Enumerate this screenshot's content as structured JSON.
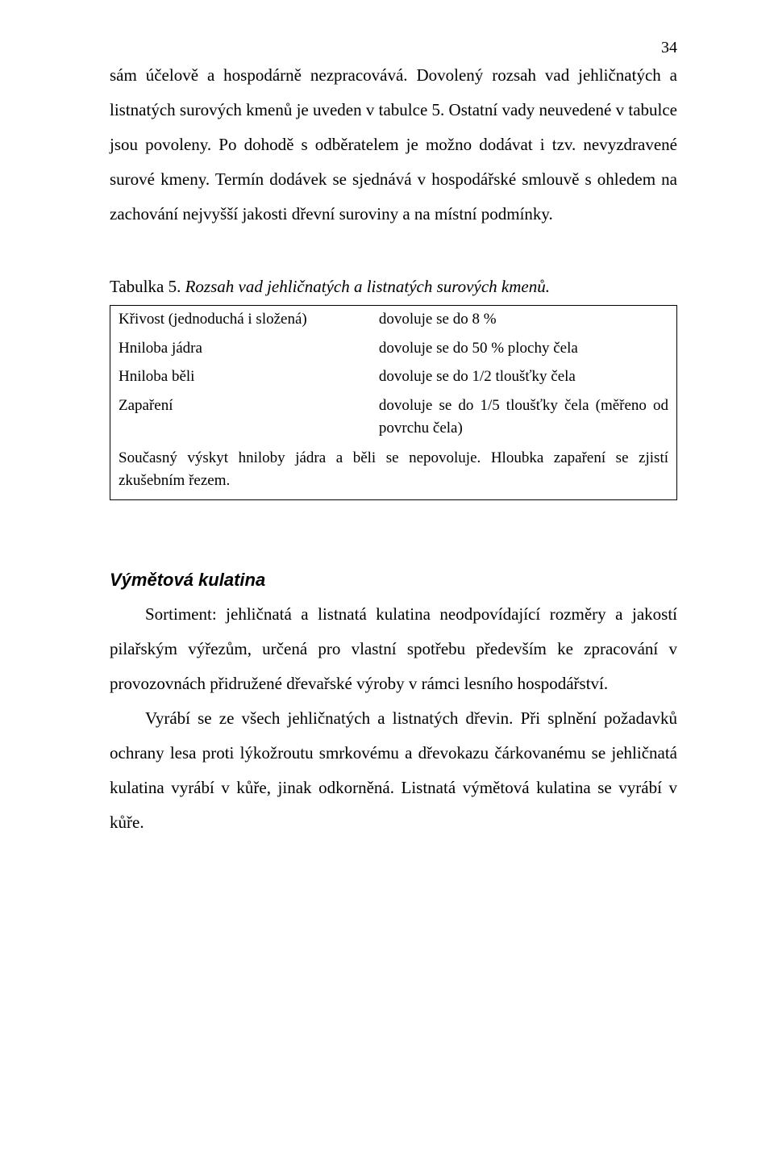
{
  "page_number": "34",
  "para1": "sám účelově a hospodárně nezpracovává. Dovolený rozsah vad jehličnatých a listnatých surových kmenů je uveden v tabulce 5. Ostatní vady neuvedené v tabulce jsou povoleny. Po dohodě s odběratelem je možno dodávat i tzv. nevyzdravené surové kmeny. Termín dodávek se sjednává v hospodářské smlouvě s ohledem na zachování nejvyšší jakosti dřevní suroviny a na místní podmínky.",
  "table_caption_label": "Tabulka 5.",
  "table_caption_rest": " Rozsah vad jehličnatých a listnatých surových kmenů.",
  "table": {
    "rows": [
      {
        "l": "Křivost (jednoduchá i složená)",
        "r": "dovoluje se do 8 %"
      },
      {
        "l": "Hniloba jádra",
        "r": "dovoluje se do 50 % plochy čela"
      },
      {
        "l": "Hniloba běli",
        "r": "dovoluje se do 1/2  tloušťky čela"
      },
      {
        "l": "Zapaření",
        "r": "dovoluje se do 1/5 tloušťky čela (měřeno od povrchu čela)"
      }
    ],
    "footnote": "Současný výskyt hniloby jádra a běli se nepovoluje. Hloubka zapaření se zjistí zkušebním řezem."
  },
  "section_heading": "Výmětová kulatina",
  "para2": "Sortiment: jehličnatá a listnatá kulatina neodpovídající rozměry a jakostí pilařským výřezům, určená pro vlastní spotřebu především ke zpracování v provozovnách přidružené dřevařské výroby v rámci lesního hospodářství.",
  "para3": "Vyrábí se ze všech jehličnatých a listnatých dřevin. Při splnění požadavků ochrany lesa proti lýkožroutu smrkovému a dřevokazu čárkovanému se jehličnatá kulatina vyrábí v kůře, jinak odkorněná. Listnatá výmětová kulatina se vyrábí v kůře."
}
